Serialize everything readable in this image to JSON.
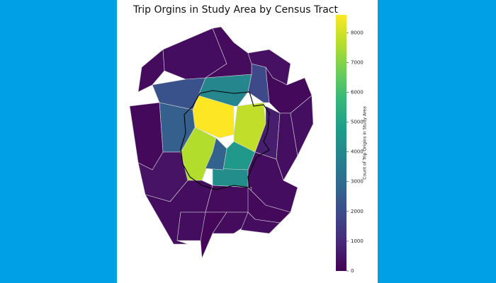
{
  "title": "Trip Orgins in Study Area by Census Tract",
  "colorbar": {
    "label": "Count of Trip Origins in Study Area",
    "lim": [
      0,
      8600
    ],
    "ticks": [
      0,
      1000,
      2000,
      3000,
      4000,
      5000,
      6000,
      7000,
      8000
    ]
  },
  "tracts": {
    "values": [
      8600,
      7800,
      7600,
      4000,
      4600,
      4200,
      2700,
      2600,
      2200,
      1900,
      700,
      300,
      250,
      400,
      200,
      350,
      300,
      250,
      200,
      450,
      300,
      250,
      200,
      300,
      150,
      250,
      350,
      300
    ]
  }
}
